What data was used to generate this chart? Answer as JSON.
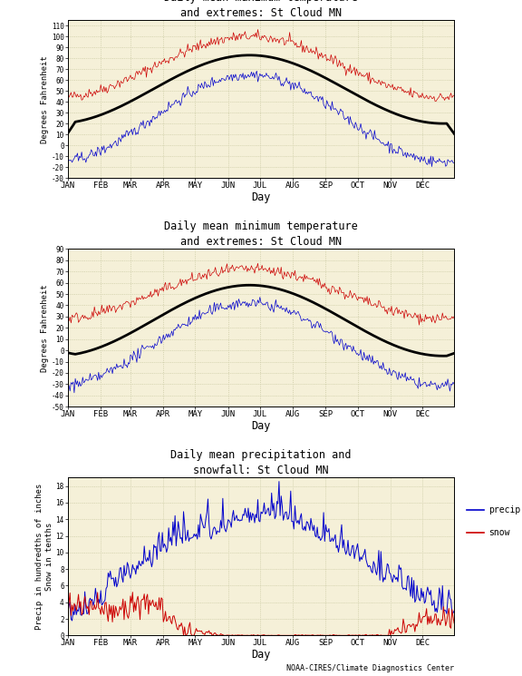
{
  "title1": "Daily mean maximum temperature\nand extremes: St Cloud MN",
  "title2": "Daily mean minimum temperature\nand extremes: St Cloud MN",
  "title3": "Daily mean precipitation and\nsnowfall: St Cloud MN",
  "ylabel1": "Degrees Fahrenheit",
  "ylabel2": "Degrees Fahrenheit",
  "ylabel3": "Precip in hundredths of inches\nSnow in tenths",
  "xlabel": "Day",
  "months": [
    "JAN",
    "FEB",
    "MAR",
    "APR",
    "MAY",
    "JUN",
    "JUL",
    "AUG",
    "SEP",
    "OCT",
    "NOV",
    "DEC"
  ],
  "month_days": [
    0,
    31,
    59,
    90,
    120,
    151,
    181,
    212,
    243,
    273,
    304,
    334
  ],
  "ylim1": [
    -30,
    115
  ],
  "ylim2": [
    -50,
    90
  ],
  "ylim3": [
    0,
    19
  ],
  "yticks1": [
    -30,
    -20,
    -10,
    0,
    10,
    20,
    30,
    40,
    50,
    60,
    70,
    80,
    90,
    100,
    110
  ],
  "yticks2": [
    -50,
    -40,
    -30,
    -20,
    -10,
    0,
    10,
    20,
    30,
    40,
    50,
    60,
    70,
    80,
    90
  ],
  "yticks3": [
    0,
    2,
    4,
    6,
    8,
    10,
    12,
    14,
    16,
    18
  ],
  "bg_color": "#f5f0d8",
  "line_red": "#cc0000",
  "line_blue": "#0000cc",
  "line_black": "#000000",
  "grid_color": "#c8c8a0",
  "footer": "NOAA-CIRES/Climate Diagnostics Center",
  "legend_precip": "precip",
  "legend_snow": "snow"
}
